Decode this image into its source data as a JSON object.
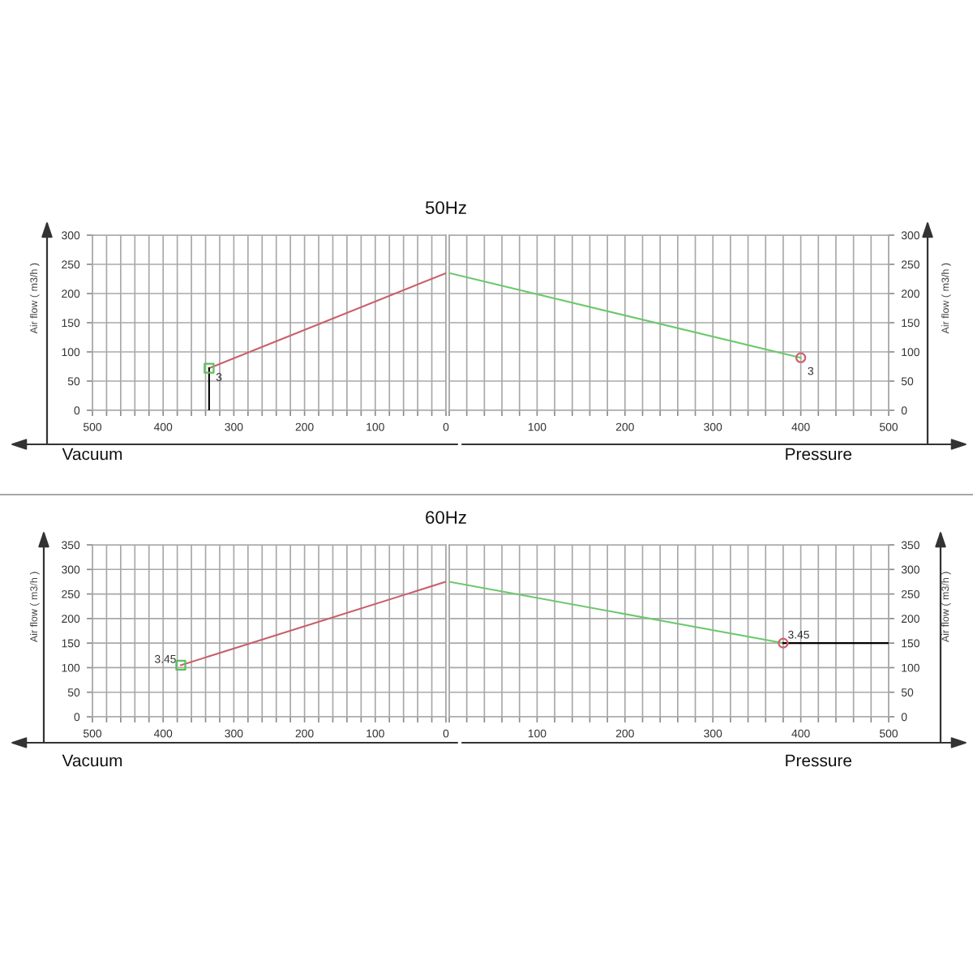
{
  "chart_data": [
    {
      "type": "line",
      "title": "50Hz",
      "xlabel": "Vacuum",
      "ylabel": "Air flow ( m3/h )",
      "xlim": [
        500,
        0
      ],
      "ylim": [
        0,
        300
      ],
      "xticks": [
        0,
        {
          "value": 20,
          "label": null
        },
        {
          "value": 40,
          "label": null
        },
        {
          "value": 60,
          "label": null
        },
        {
          "value": 80,
          "label": null
        },
        100,
        {
          "value": 120,
          "label": null
        },
        {
          "value": 140,
          "label": null
        },
        {
          "value": 160,
          "label": null
        },
        {
          "value": 180,
          "label": null
        },
        200,
        {
          "value": 220,
          "label": null
        },
        {
          "value": 240,
          "label": null
        },
        {
          "value": 260,
          "label": null
        },
        {
          "value": 280,
          "label": null
        },
        300,
        {
          "value": 320,
          "label": null
        },
        {
          "value": 340,
          "label": null
        },
        {
          "value": 360,
          "label": null
        },
        {
          "value": 380,
          "label": null
        },
        400,
        {
          "value": 420,
          "label": null
        },
        {
          "value": 440,
          "label": null
        },
        {
          "value": 460,
          "label": null
        },
        {
          "value": 480,
          "label": null
        },
        500
      ],
      "yticks": [
        0,
        50,
        100,
        150,
        200,
        250,
        300
      ],
      "grid": true,
      "series": [
        {
          "color": "#c8606c",
          "x": [
            0,
            335
          ],
          "values": [
            235,
            72
          ]
        },
        {
          "color": "#000000",
          "x": [
            335,
            335
          ],
          "values": [
            72,
            0
          ]
        },
        {
          "type": "scatter",
          "marker": "square",
          "color": "#5cc05c",
          "x": [
            335
          ],
          "values": [
            72
          ]
        }
      ],
      "annotations": [
        {
          "text": "3",
          "x": 335,
          "y": 72
        }
      ]
    },
    {
      "type": "line",
      "xlabel": "Pressure",
      "ylabel": "Air flow ( m3/h )",
      "xlim": [
        0,
        500
      ],
      "ylim": [
        0,
        300
      ],
      "xticks": [
        {
          "value": 0,
          "label": null
        },
        {
          "value": 20,
          "label": null
        },
        {
          "value": 40,
          "label": null
        },
        {
          "value": 60,
          "label": null
        },
        {
          "value": 80,
          "label": null
        },
        100,
        {
          "value": 120,
          "label": null
        },
        {
          "value": 140,
          "label": null
        },
        {
          "value": 160,
          "label": null
        },
        {
          "value": 180,
          "label": null
        },
        200,
        {
          "value": 220,
          "label": null
        },
        {
          "value": 240,
          "label": null
        },
        {
          "value": 260,
          "label": null
        },
        {
          "value": 280,
          "label": null
        },
        300,
        {
          "value": 320,
          "label": null
        },
        {
          "value": 340,
          "label": null
        },
        {
          "value": 360,
          "label": null
        },
        {
          "value": 380,
          "label": null
        },
        400,
        {
          "value": 420,
          "label": null
        },
        {
          "value": 440,
          "label": null
        },
        {
          "value": 460,
          "label": null
        },
        {
          "value": 480,
          "label": null
        },
        500
      ],
      "yticks": [
        0,
        50,
        100,
        150,
        200,
        250,
        300
      ],
      "grid": true,
      "series": [
        {
          "color": "#6cc86c",
          "x": [
            0,
            400
          ],
          "values": [
            235,
            90
          ]
        },
        {
          "type": "scatter",
          "marker": "circle",
          "color": "#d0606c",
          "x": [
            400
          ],
          "values": [
            90
          ]
        }
      ],
      "annotations": [
        {
          "text": "3",
          "x": 400,
          "y": 90
        }
      ]
    },
    {
      "type": "line",
      "title": "60Hz",
      "xlabel": "Vacuum",
      "ylabel": "Air flow ( m3/h )",
      "xlim": [
        500,
        0
      ],
      "ylim": [
        0,
        350
      ],
      "xticks": [
        0,
        {
          "value": 20,
          "label": null
        },
        {
          "value": 40,
          "label": null
        },
        {
          "value": 60,
          "label": null
        },
        {
          "value": 80,
          "label": null
        },
        100,
        {
          "value": 120,
          "label": null
        },
        {
          "value": 140,
          "label": null
        },
        {
          "value": 160,
          "label": null
        },
        {
          "value": 180,
          "label": null
        },
        200,
        {
          "value": 220,
          "label": null
        },
        {
          "value": 240,
          "label": null
        },
        {
          "value": 260,
          "label": null
        },
        {
          "value": 280,
          "label": null
        },
        300,
        {
          "value": 320,
          "label": null
        },
        {
          "value": 340,
          "label": null
        },
        {
          "value": 360,
          "label": null
        },
        {
          "value": 380,
          "label": null
        },
        400,
        {
          "value": 420,
          "label": null
        },
        {
          "value": 440,
          "label": null
        },
        {
          "value": 460,
          "label": null
        },
        {
          "value": 480,
          "label": null
        },
        500
      ],
      "yticks": [
        0,
        50,
        100,
        150,
        200,
        250,
        300,
        350
      ],
      "grid": true,
      "series": [
        {
          "color": "#c8606c",
          "x": [
            0,
            375
          ],
          "values": [
            275,
            105
          ]
        },
        {
          "type": "scatter",
          "marker": "square",
          "color": "#5cc05c",
          "x": [
            375
          ],
          "values": [
            105
          ]
        }
      ],
      "annotations": [
        {
          "text": "3.45",
          "x": 375,
          "y": 105
        }
      ]
    },
    {
      "type": "line",
      "xlabel": "Pressure",
      "ylabel": "Air flow ( m3/h )",
      "xlim": [
        0,
        500
      ],
      "ylim": [
        0,
        350
      ],
      "xticks": [
        {
          "value": 0,
          "label": null
        },
        {
          "value": 20,
          "label": null
        },
        {
          "value": 40,
          "label": null
        },
        {
          "value": 60,
          "label": null
        },
        {
          "value": 80,
          "label": null
        },
        100,
        {
          "value": 120,
          "label": null
        },
        {
          "value": 140,
          "label": null
        },
        {
          "value": 160,
          "label": null
        },
        {
          "value": 180,
          "label": null
        },
        200,
        {
          "value": 220,
          "label": null
        },
        {
          "value": 240,
          "label": null
        },
        {
          "value": 260,
          "label": null
        },
        {
          "value": 280,
          "label": null
        },
        300,
        {
          "value": 320,
          "label": null
        },
        {
          "value": 340,
          "label": null
        },
        {
          "value": 360,
          "label": null
        },
        {
          "value": 380,
          "label": null
        },
        400,
        {
          "value": 420,
          "label": null
        },
        {
          "value": 440,
          "label": null
        },
        {
          "value": 460,
          "label": null
        },
        {
          "value": 480,
          "label": null
        },
        500
      ],
      "yticks": [
        0,
        50,
        100,
        150,
        200,
        250,
        300,
        350
      ],
      "grid": true,
      "series": [
        {
          "color": "#6cc86c",
          "x": [
            0,
            380
          ],
          "values": [
            275,
            150
          ]
        },
        {
          "color": "#000000",
          "x": [
            380,
            500
          ],
          "values": [
            150,
            150
          ]
        },
        {
          "type": "scatter",
          "marker": "circle",
          "color": "#d0606c",
          "x": [
            380
          ],
          "values": [
            150
          ]
        }
      ],
      "annotations": [
        {
          "text": "3.45",
          "x": 380,
          "y": 150
        }
      ]
    }
  ]
}
